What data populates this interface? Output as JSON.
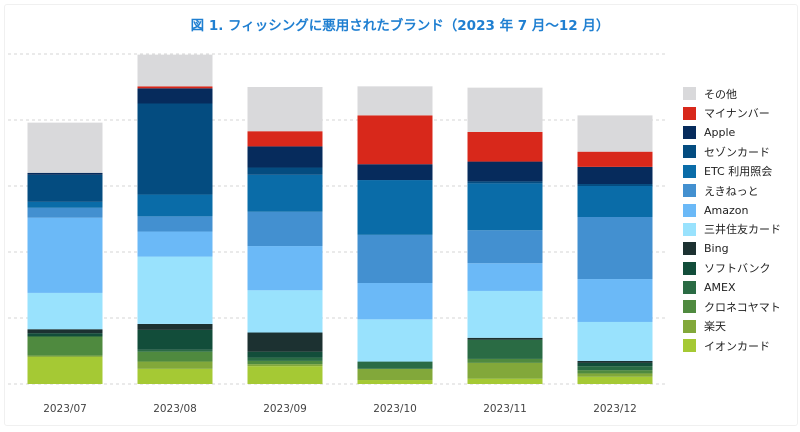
{
  "chart_data": {
    "type": "bar",
    "stacked": true,
    "title": "図 1. フィッシングに悪用されたブランド（2023 年 7 月〜12 月）",
    "xlabel": "",
    "ylabel": "",
    "y_unit_note": "Y axis unlabeled; values are relative heights (one gridline interval = 10 units)",
    "ylim": [
      0,
      50
    ],
    "grid": true,
    "legend_position": "right",
    "categories": [
      "2023/07",
      "2023/08",
      "2023/09",
      "2023/10",
      "2023/11",
      "2023/12"
    ],
    "series": [
      {
        "name": "イオンカード",
        "color": "#a5c934",
        "values": [
          4.1,
          2.3,
          2.7,
          0.6,
          0.8,
          1.1
        ]
      },
      {
        "name": "楽天",
        "color": "#82a83a",
        "values": [
          0.2,
          1.1,
          0.3,
          1.7,
          2.4,
          0.5
        ]
      },
      {
        "name": "クロネコヤマト",
        "color": "#4f8a3f",
        "values": [
          2.9,
          1.5,
          0.5,
          0.0,
          0.6,
          0.5
        ]
      },
      {
        "name": "AMEX",
        "color": "#2a6b44",
        "values": [
          0.0,
          0.3,
          0.5,
          1.1,
          2.9,
          0.6
        ]
      },
      {
        "name": "ソフトバンク",
        "color": "#124d3a",
        "values": [
          0.5,
          3.0,
          0.9,
          0.0,
          0.0,
          0.5
        ]
      },
      {
        "name": "Bing",
        "color": "#1c3131",
        "values": [
          0.6,
          0.9,
          2.9,
          0.0,
          0.3,
          0.3
        ]
      },
      {
        "name": "三井住友カード",
        "color": "#99e2fd",
        "values": [
          5.5,
          10.2,
          6.4,
          6.4,
          7.1,
          5.9
        ]
      },
      {
        "name": "Amazon",
        "color": "#6bb9f7",
        "values": [
          11.4,
          3.8,
          6.7,
          5.5,
          4.2,
          6.5
        ]
      },
      {
        "name": "えきねっと",
        "color": "#4390d0",
        "values": [
          1.5,
          2.3,
          5.2,
          7.3,
          5.0,
          9.4
        ]
      },
      {
        "name": "ETC 利用照会",
        "color": "#0a6ca8",
        "values": [
          0.9,
          3.3,
          5.6,
          8.3,
          7.1,
          4.7
        ]
      },
      {
        "name": "セゾンカード",
        "color": "#044c80",
        "values": [
          4.1,
          13.8,
          1.1,
          0.0,
          0.3,
          0.3
        ]
      },
      {
        "name": "Apple",
        "color": "#062b5c",
        "values": [
          0.3,
          2.3,
          3.2,
          2.4,
          3.0,
          2.6
        ]
      },
      {
        "name": "マイナンバー",
        "color": "#d8281b",
        "values": [
          0.0,
          0.3,
          2.3,
          7.4,
          4.5,
          2.3
        ]
      },
      {
        "name": "その他",
        "color": "#d9d9db",
        "values": [
          7.6,
          4.8,
          6.7,
          4.4,
          6.7,
          5.5
        ]
      }
    ]
  }
}
